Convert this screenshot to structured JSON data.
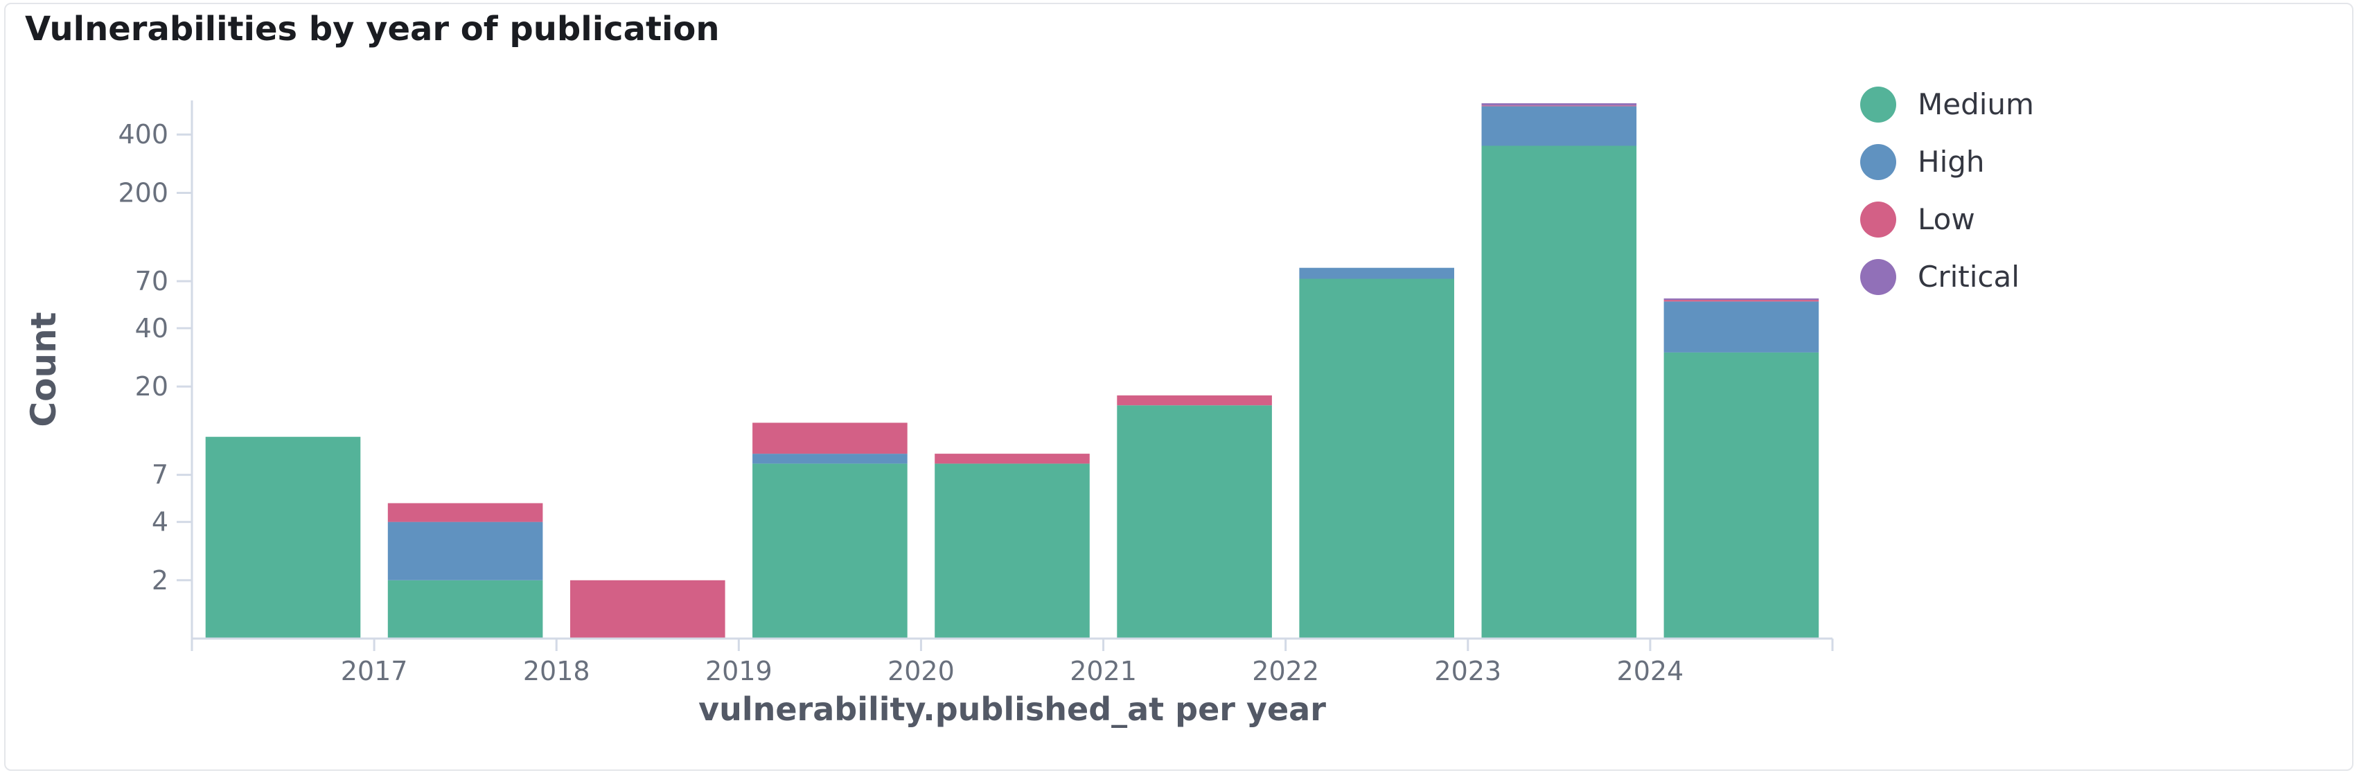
{
  "panel": {
    "title": "Vulnerabilities by year of publication"
  },
  "chart_data": {
    "type": "bar",
    "stacked": true,
    "yscale": "log",
    "title": "Vulnerabilities by year of publication",
    "xlabel": "vulnerability.published_at per year",
    "ylabel": "Count",
    "ylim": [
      1,
      600
    ],
    "y_ticks": [
      2,
      4,
      7,
      20,
      40,
      70,
      200,
      400
    ],
    "x_tick_labels": [
      "2017",
      "2018",
      "2019",
      "2020",
      "2021",
      "2022",
      "2023",
      "2024"
    ],
    "categories": [
      "2016",
      "2017",
      "2018",
      "2019",
      "2020",
      "2021",
      "2022",
      "2023",
      "2024"
    ],
    "series": [
      {
        "name": "Medium",
        "color": "#54b399",
        "values": [
          11,
          2,
          0,
          8,
          8,
          16,
          72,
          350,
          30
        ]
      },
      {
        "name": "High",
        "color": "#6092c0",
        "values": [
          0,
          2,
          0,
          1,
          0,
          0,
          10,
          210,
          25
        ]
      },
      {
        "name": "Low",
        "color": "#d36086",
        "values": [
          0,
          1,
          2,
          4,
          1,
          2,
          0,
          5,
          1
        ]
      },
      {
        "name": "Critical",
        "color": "#9170b8",
        "values": [
          0,
          0,
          0,
          0,
          0,
          0,
          0,
          15,
          1
        ]
      }
    ],
    "grid": false,
    "legend_position": "right"
  }
}
